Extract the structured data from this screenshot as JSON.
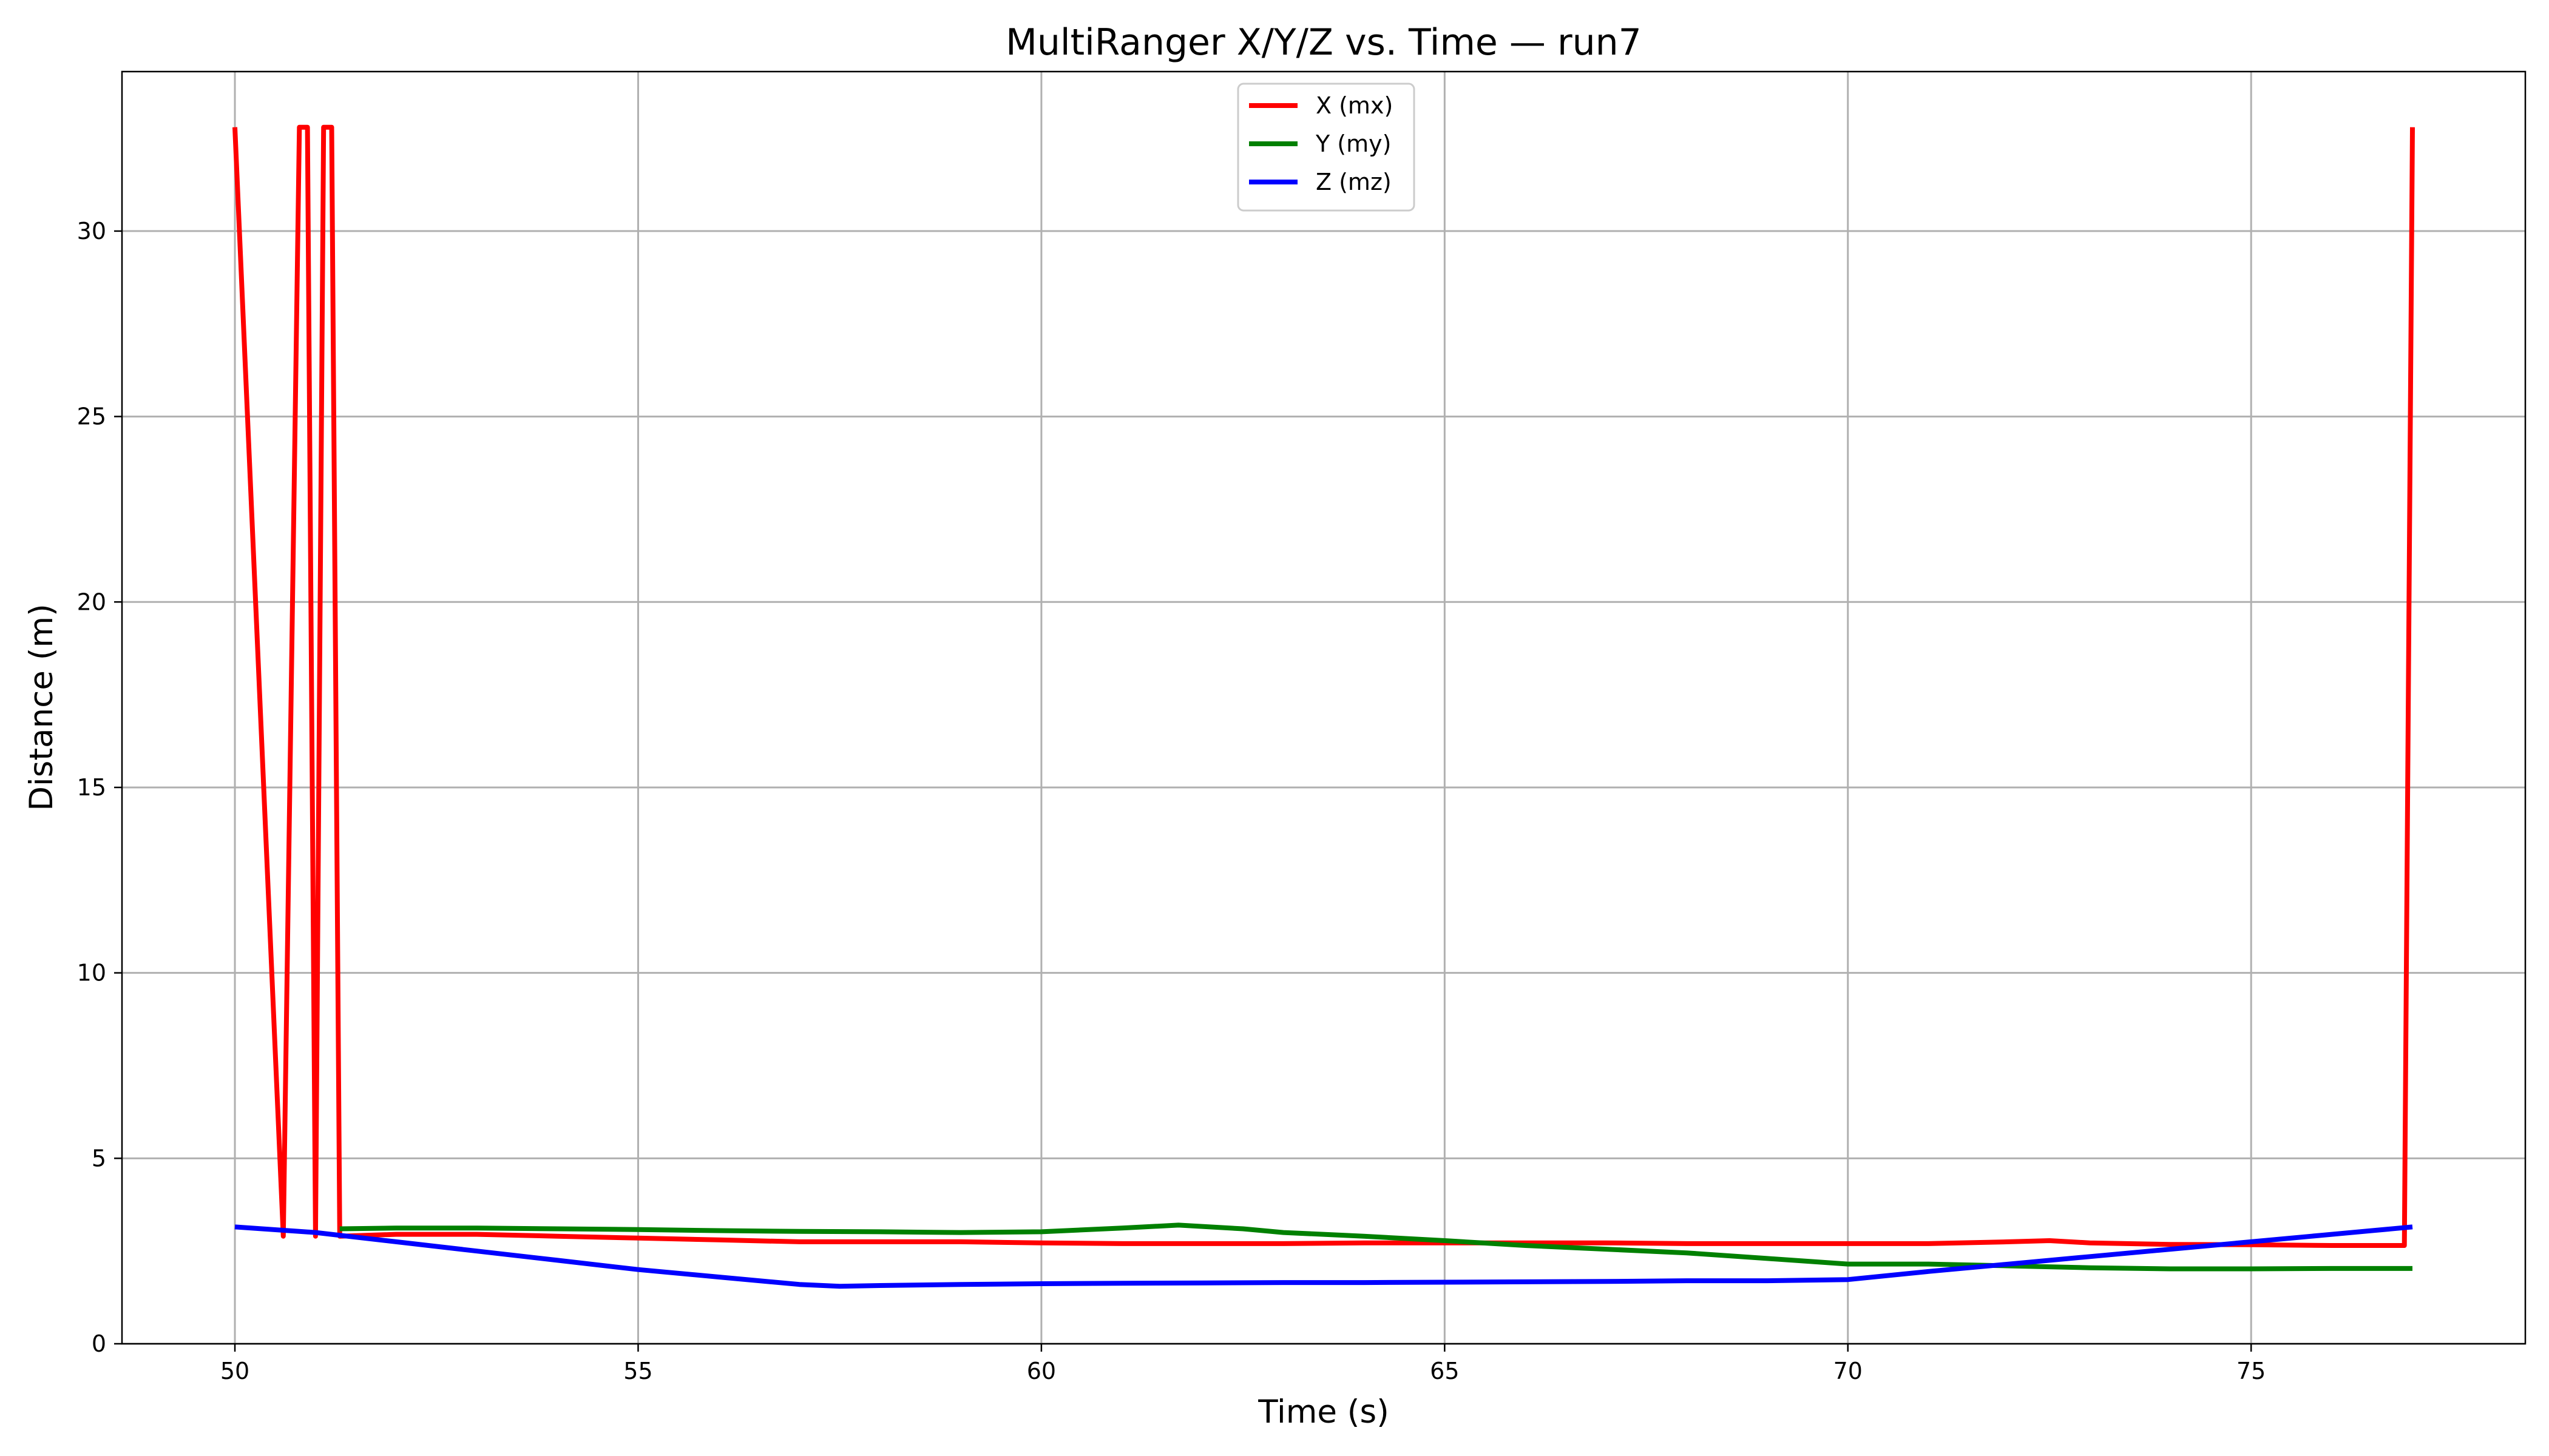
{
  "chart_data": {
    "type": "line",
    "title": "MultiRanger X/Y/Z vs. Time — run7",
    "xlabel": "Time (s)",
    "ylabel": "Distance (m)",
    "xlim": [
      48.6,
      78.4
    ],
    "ylim": [
      0,
      34.3
    ],
    "xticks": [
      50,
      55,
      60,
      65,
      70,
      75
    ],
    "yticks": [
      0,
      5,
      10,
      15,
      20,
      25,
      30
    ],
    "grid": true,
    "legend_position": "upper-center",
    "series": [
      {
        "name": "X (mx)",
        "color": "#ff0000",
        "x": [
          50.0,
          50.6,
          50.8,
          50.9,
          51.0,
          51.1,
          51.2,
          51.3,
          52.0,
          53.0,
          54.0,
          55.0,
          56.0,
          57.0,
          58.0,
          59.0,
          60.0,
          61.0,
          62.0,
          63.0,
          64.0,
          65.0,
          66.0,
          67.0,
          68.0,
          69.0,
          70.0,
          71.0,
          72.0,
          72.5,
          73.0,
          74.0,
          75.0,
          76.0,
          76.9,
          77.0
        ],
        "y": [
          32.8,
          2.9,
          32.8,
          32.8,
          2.9,
          32.8,
          32.8,
          2.9,
          2.95,
          2.95,
          2.9,
          2.85,
          2.8,
          2.75,
          2.75,
          2.75,
          2.72,
          2.7,
          2.7,
          2.7,
          2.72,
          2.72,
          2.72,
          2.72,
          2.7,
          2.7,
          2.7,
          2.7,
          2.75,
          2.78,
          2.72,
          2.68,
          2.67,
          2.65,
          2.65,
          32.8
        ]
      },
      {
        "name": "Y (my)",
        "color": "#008000",
        "x": [
          51.3,
          52.0,
          53.0,
          54.0,
          55.0,
          56.0,
          57.0,
          58.0,
          59.0,
          60.0,
          61.0,
          61.7,
          62.5,
          63.0,
          64.0,
          65.0,
          66.0,
          67.0,
          68.0,
          69.0,
          70.0,
          71.0,
          72.0,
          73.0,
          74.0,
          75.0,
          76.0,
          77.0
        ],
        "y": [
          3.1,
          3.12,
          3.12,
          3.1,
          3.08,
          3.05,
          3.03,
          3.02,
          3.0,
          3.02,
          3.12,
          3.2,
          3.1,
          3.0,
          2.9,
          2.78,
          2.65,
          2.55,
          2.45,
          2.3,
          2.15,
          2.15,
          2.1,
          2.05,
          2.02,
          2.02,
          2.03,
          2.03
        ]
      },
      {
        "name": "Z (mz)",
        "color": "#0000ff",
        "x": [
          50.0,
          51.0,
          52.0,
          53.0,
          54.0,
          55.0,
          56.0,
          57.0,
          57.5,
          58.0,
          59.0,
          60.0,
          61.0,
          62.0,
          63.0,
          64.0,
          65.0,
          66.0,
          67.0,
          68.0,
          69.0,
          70.0,
          71.0,
          72.0,
          73.0,
          74.0,
          75.0,
          76.0,
          77.0
        ],
        "y": [
          3.15,
          3.0,
          2.75,
          2.5,
          2.25,
          2.0,
          1.8,
          1.6,
          1.55,
          1.57,
          1.6,
          1.62,
          1.63,
          1.64,
          1.65,
          1.65,
          1.66,
          1.67,
          1.68,
          1.7,
          1.7,
          1.73,
          1.95,
          2.15,
          2.35,
          2.55,
          2.75,
          2.95,
          3.15
        ]
      }
    ]
  }
}
